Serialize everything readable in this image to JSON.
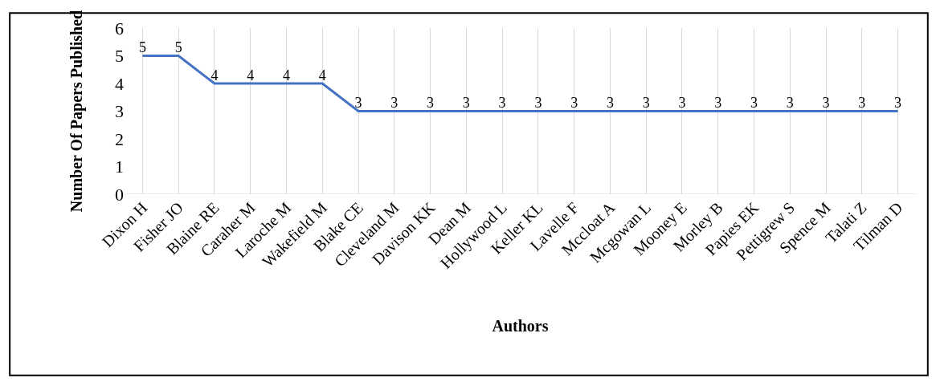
{
  "chart_data": {
    "type": "line",
    "xlabel": "Authors",
    "ylabel": "Number Of Papers Published",
    "categories": [
      "Dixon H",
      "Fisher JO",
      "Blaine RE",
      "Caraher M",
      "Laroche M",
      "Wakefield M",
      "Blake CE",
      "Cleveland M",
      "Davison KK",
      "Dean M",
      "Hollywood L",
      "Keller KL",
      "Lavelle F",
      "Mccloat A",
      "Mcgowan L",
      "Mooney E",
      "Morley B",
      "Papies EK",
      "Pettigrew S",
      "Spence M",
      "Talati Z",
      "Tilman D"
    ],
    "series": [
      {
        "color": "#4472c4",
        "values": [
          5,
          5,
          4,
          4,
          4,
          4,
          3,
          3,
          3,
          3,
          3,
          3,
          3,
          3,
          3,
          3,
          3,
          3,
          3,
          3,
          3,
          3
        ]
      }
    ],
    "ylim": [
      0,
      6
    ],
    "yticks": [
      0,
      1,
      2,
      3,
      4,
      5,
      6
    ],
    "grid": "x",
    "data_labels": true,
    "marker": "none",
    "line_style": "solid"
  }
}
